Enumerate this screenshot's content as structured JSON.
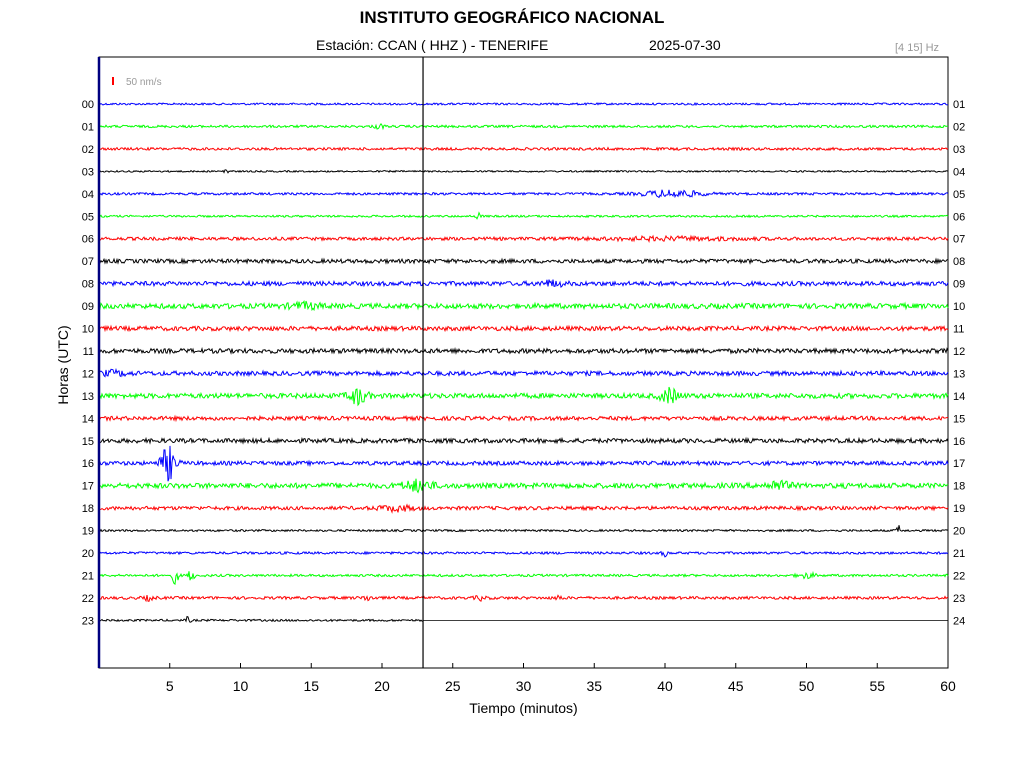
{
  "title": "INSTITUTO GEOGRÁFICO NACIONAL",
  "station_label": "Estación:  CCAN ( HHZ ) - TENERIFE",
  "date": "2025-07-30",
  "filter": "[4 15] Hz",
  "scale_label": "50 nm/s",
  "colors": {
    "blue": "#0000ff",
    "green": "#00ff00",
    "red": "#ff0000",
    "black": "#000000",
    "scale": "#ff0000",
    "frame": "#000080"
  },
  "chart_data": {
    "type": "line",
    "title": "INSTITUTO GEOGRÁFICO NACIONAL",
    "xlabel": "Tiempo (minutos)",
    "ylabel": "Horas (UTC)",
    "xlim": [
      0,
      60
    ],
    "xticks": [
      5,
      10,
      15,
      20,
      25,
      30,
      35,
      40,
      45,
      50,
      55,
      60
    ],
    "current_time_minute": 22.9,
    "grid": false,
    "left_labels": [
      "00",
      "01",
      "02",
      "03",
      "04",
      "05",
      "06",
      "07",
      "08",
      "09",
      "10",
      "11",
      "12",
      "13",
      "14",
      "15",
      "16",
      "17",
      "18",
      "19",
      "20",
      "21",
      "22",
      "23"
    ],
    "right_labels": [
      "01",
      "02",
      "03",
      "04",
      "05",
      "06",
      "07",
      "08",
      "09",
      "10",
      "11",
      "12",
      "13",
      "14",
      "15",
      "16",
      "17",
      "18",
      "19",
      "20",
      "21",
      "22",
      "23",
      "24"
    ],
    "series": [
      {
        "hour": 0,
        "color": "blue",
        "noise": 1.0,
        "end": 60,
        "events": []
      },
      {
        "hour": 1,
        "color": "green",
        "noise": 1.2,
        "end": 60,
        "events": [
          [
            19.8,
            2.5,
            0.3
          ]
        ]
      },
      {
        "hour": 2,
        "color": "red",
        "noise": 1.3,
        "end": 60,
        "events": []
      },
      {
        "hour": 3,
        "color": "black",
        "noise": 0.8,
        "end": 60,
        "events": [
          [
            9.0,
            5,
            0.15
          ]
        ]
      },
      {
        "hour": 4,
        "color": "blue",
        "noise": 1.2,
        "end": 60,
        "events": [
          [
            40.5,
            3.5,
            2.0
          ]
        ]
      },
      {
        "hour": 5,
        "color": "green",
        "noise": 1.0,
        "end": 60,
        "events": [
          [
            26.8,
            3,
            0.2
          ]
        ]
      },
      {
        "hour": 6,
        "color": "red",
        "noise": 1.6,
        "end": 60,
        "events": [
          [
            40.5,
            1.2,
            5.0
          ]
        ]
      },
      {
        "hour": 7,
        "color": "black",
        "noise": 2.0,
        "end": 60,
        "events": []
      },
      {
        "hour": 8,
        "color": "blue",
        "noise": 2.2,
        "end": 60,
        "events": [
          [
            32.0,
            2.5,
            0.8
          ]
        ]
      },
      {
        "hour": 9,
        "color": "green",
        "noise": 2.6,
        "end": 60,
        "events": [
          [
            14.5,
            2.5,
            1.0
          ]
        ]
      },
      {
        "hour": 10,
        "color": "red",
        "noise": 2.2,
        "end": 60,
        "events": []
      },
      {
        "hour": 11,
        "color": "black",
        "noise": 2.3,
        "end": 60,
        "events": []
      },
      {
        "hour": 12,
        "color": "blue",
        "noise": 2.2,
        "end": 60,
        "events": [
          [
            1.0,
            2.0,
            1.0
          ]
        ]
      },
      {
        "hour": 13,
        "color": "green",
        "noise": 2.5,
        "end": 60,
        "events": [
          [
            18.3,
            8,
            0.6
          ],
          [
            40.3,
            7,
            0.6
          ]
        ]
      },
      {
        "hour": 14,
        "color": "red",
        "noise": 2.0,
        "end": 60,
        "events": []
      },
      {
        "hour": 15,
        "color": "black",
        "noise": 2.2,
        "end": 60,
        "events": []
      },
      {
        "hour": 16,
        "color": "blue",
        "noise": 2.0,
        "end": 60,
        "events": [
          [
            4.9,
            17,
            0.5
          ]
        ]
      },
      {
        "hour": 17,
        "color": "green",
        "noise": 2.6,
        "end": 60,
        "events": [
          [
            22.5,
            5,
            1.0
          ],
          [
            48.0,
            4,
            0.8
          ]
        ]
      },
      {
        "hour": 18,
        "color": "red",
        "noise": 1.8,
        "end": 60,
        "events": [
          [
            21.0,
            2.5,
            1.2
          ]
        ]
      },
      {
        "hour": 19,
        "color": "black",
        "noise": 1.0,
        "end": 60,
        "events": [
          [
            56.5,
            5,
            0.15
          ]
        ]
      },
      {
        "hour": 20,
        "color": "blue",
        "noise": 1.2,
        "end": 60,
        "events": [
          [
            40.0,
            3,
            0.2
          ]
        ]
      },
      {
        "hour": 21,
        "color": "green",
        "noise": 1.2,
        "end": 60,
        "events": [
          [
            5.4,
            9,
            0.2
          ],
          [
            6.5,
            7,
            0.2
          ],
          [
            50.0,
            2.5,
            0.6
          ]
        ]
      },
      {
        "hour": 22,
        "color": "red",
        "noise": 1.4,
        "end": 60,
        "events": [
          [
            3.5,
            2.0,
            0.4
          ],
          [
            19.0,
            2.0,
            0.4
          ],
          [
            27.0,
            2.0,
            0.4
          ],
          [
            32.5,
            2.5,
            0.2
          ]
        ]
      },
      {
        "hour": 23,
        "color": "black",
        "noise": 1.0,
        "end": 22.9,
        "events": [
          [
            6.3,
            4,
            0.15
          ]
        ]
      }
    ]
  }
}
